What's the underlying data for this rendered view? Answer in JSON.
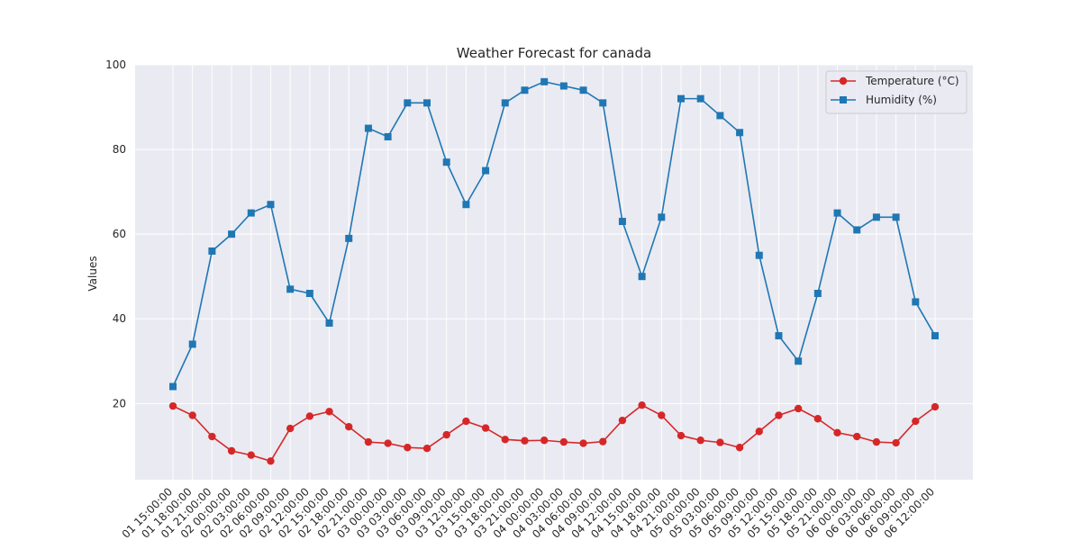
{
  "chart_data": {
    "type": "line",
    "title": "Weather Forecast for canada",
    "xlabel": "",
    "ylabel": "Values",
    "ylim": [
      2,
      100
    ],
    "yticks": [
      20,
      40,
      60,
      80,
      100
    ],
    "grid": true,
    "legend_position": "top-right",
    "categories": [
      "01 15:00:00",
      "01 18:00:00",
      "01 21:00:00",
      "02 00:00:00",
      "02 03:00:00",
      "02 06:00:00",
      "02 09:00:00",
      "02 12:00:00",
      "02 15:00:00",
      "02 18:00:00",
      "02 21:00:00",
      "03 00:00:00",
      "03 03:00:00",
      "03 06:00:00",
      "03 09:00:00",
      "03 12:00:00",
      "03 15:00:00",
      "03 18:00:00",
      "03 21:00:00",
      "04 00:00:00",
      "04 03:00:00",
      "04 06:00:00",
      "04 09:00:00",
      "04 12:00:00",
      "04 15:00:00",
      "04 18:00:00",
      "04 21:00:00",
      "05 00:00:00",
      "05 03:00:00",
      "05 06:00:00",
      "05 09:00:00",
      "05 12:00:00",
      "05 15:00:00",
      "05 18:00:00",
      "05 21:00:00",
      "06 00:00:00",
      "06 03:00:00",
      "06 06:00:00",
      "06 09:00:00",
      "06 12:00:00"
    ],
    "series": [
      {
        "name": "Temperature (°C)",
        "color": "#d62728",
        "marker": "circle",
        "values": [
          19.4,
          17.2,
          12.2,
          8.8,
          7.8,
          6.4,
          14.1,
          17.0,
          18.1,
          14.5,
          10.9,
          10.6,
          9.6,
          9.4,
          12.6,
          15.8,
          14.2,
          11.5,
          11.2,
          11.3,
          10.9,
          10.6,
          11.0,
          16.0,
          19.6,
          17.2,
          12.4,
          11.3,
          10.8,
          9.6,
          13.4,
          17.2,
          18.8,
          16.4,
          13.1,
          12.2,
          10.9,
          10.7,
          15.8,
          19.2
        ]
      },
      {
        "name": "Humidity (%)",
        "color": "#1f77b4",
        "marker": "square",
        "values": [
          24,
          34,
          56,
          60,
          65,
          67,
          47,
          46,
          39,
          59,
          85,
          83,
          91,
          91,
          77,
          67,
          75,
          91,
          94,
          96,
          95,
          94,
          91,
          63,
          50,
          64,
          92,
          92,
          88,
          84,
          55,
          36,
          30,
          46,
          65,
          61,
          64,
          64,
          44,
          36
        ]
      }
    ]
  }
}
